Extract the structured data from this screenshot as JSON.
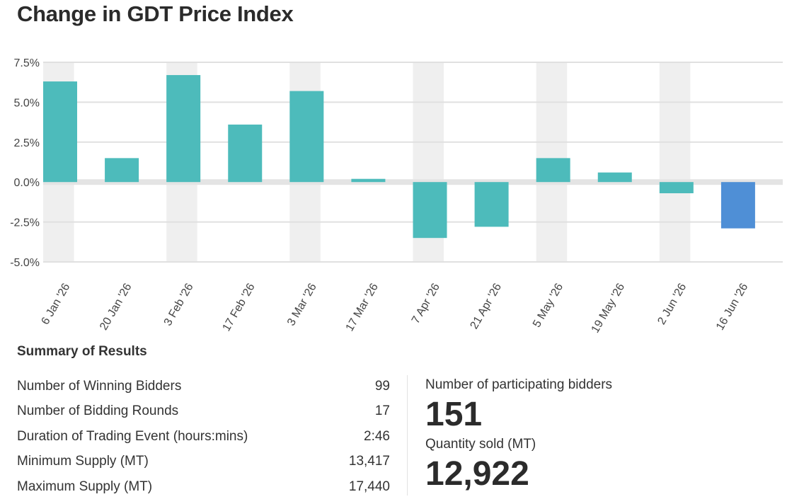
{
  "title": "Change in GDT Price Index",
  "chart_data": {
    "type": "bar",
    "title": "Change in GDT Price Index",
    "categories": [
      "6 Jan '26",
      "20 Jan '26",
      "3 Feb '26",
      "17 Feb '26",
      "3 Mar '26",
      "17 Mar '26",
      "7 Apr '26",
      "21 Apr '26",
      "5 May '26",
      "19 May '26",
      "2 Jun '26",
      "16 Jun '26"
    ],
    "values": [
      6.3,
      1.5,
      6.7,
      3.6,
      5.7,
      0.2,
      -3.5,
      -2.8,
      1.5,
      0.6,
      -0.7,
      -2.9
    ],
    "ylim": [
      -5.0,
      7.5
    ],
    "yticks": [
      7.5,
      5.0,
      2.5,
      0.0,
      -2.5,
      -5.0
    ],
    "ytick_labels": [
      "7.5%",
      "5.0%",
      "2.5%",
      "0.0%",
      "-2.5%",
      "-5.0%"
    ],
    "bar_color": "#4dbbbb",
    "highlight_color": "#4f8fd6",
    "highlight_index": 11,
    "grid": true
  },
  "summary": {
    "heading": "Summary of Results",
    "rows": [
      {
        "label": "Number of Winning Bidders",
        "value": "99"
      },
      {
        "label": "Number of Bidding Rounds",
        "value": "17"
      },
      {
        "label": "Duration of Trading Event (hours:mins)",
        "value": "2:46"
      },
      {
        "label": "Minimum Supply (MT)",
        "value": "13,417"
      },
      {
        "label": "Maximum Supply (MT)",
        "value": "17,440"
      }
    ],
    "participating_label": "Number of participating bidders",
    "participating_value": "151",
    "quantity_label": "Quantity sold (MT)",
    "quantity_value": "12,922"
  }
}
